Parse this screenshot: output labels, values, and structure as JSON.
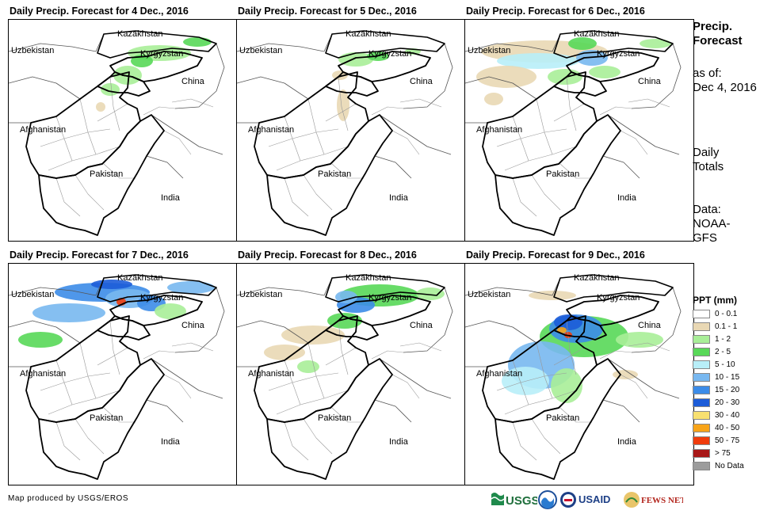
{
  "panels": [
    {
      "title": "Daily Precip. Forecast for 4 Dec., 2016"
    },
    {
      "title": "Daily Precip. Forecast for 5 Dec., 2016"
    },
    {
      "title": "Daily Precip. Forecast for 6 Dec., 2016"
    },
    {
      "title": "Daily Precip. Forecast for 7 Dec., 2016"
    },
    {
      "title": "Daily Precip. Forecast for 8 Dec., 2016"
    },
    {
      "title": "Daily Precip. Forecast for 9 Dec., 2016"
    }
  ],
  "map_labels": {
    "kazakhstan": "Kazakhstan",
    "uzbekistan": "Uzbekistan",
    "kyrgyzstan": "Kyrgyzstan",
    "china": "China",
    "afghanistan": "Afghanistan",
    "pakistan": "Pakistan",
    "india": "India"
  },
  "sidebar": {
    "heading_line1": "Precip.",
    "heading_line2": "Forecast",
    "asof_line1": "as of:",
    "asof_line2": "Dec 4, 2016",
    "daily_line1": "Daily",
    "daily_line2": "Totals",
    "data_line1": "Data:",
    "data_line2": "NOAA-",
    "data_line3": "GFS"
  },
  "legend": {
    "title": "PPT (mm)",
    "items": [
      {
        "label": "0 - 0.1",
        "color": "#ffffff"
      },
      {
        "label": "0.1 - 1",
        "color": "#e9d8b4"
      },
      {
        "label": "1 - 2",
        "color": "#a8ee98"
      },
      {
        "label": "2 - 5",
        "color": "#58d858"
      },
      {
        "label": "5 - 10",
        "color": "#b8eef8"
      },
      {
        "label": "10 - 15",
        "color": "#78b8f0"
      },
      {
        "label": "15 - 20",
        "color": "#3c8ce8"
      },
      {
        "label": "20 - 30",
        "color": "#1c5cd8"
      },
      {
        "label": "30 - 40",
        "color": "#f8e070"
      },
      {
        "label": "40 - 50",
        "color": "#f8a418"
      },
      {
        "label": "50 - 75",
        "color": "#f03c0c"
      },
      {
        "label": "> 75",
        "color": "#a81818"
      },
      {
        "label": "No Data",
        "color": "#9c9c9c"
      }
    ]
  },
  "footer": {
    "credit": "Map produced by USGS/EROS",
    "logo_usgs": "USGS",
    "logo_usaid": "USAID",
    "logo_fewsnet": "FEWS NET"
  }
}
